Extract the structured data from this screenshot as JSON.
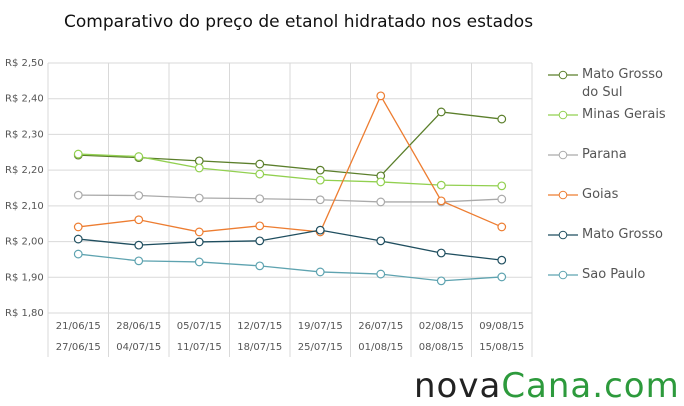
{
  "chart_data": {
    "type": "line",
    "title": "Comparativo do preço de etanol hidratado nos estados",
    "categories": [
      [
        "21/06/15",
        "27/06/15"
      ],
      [
        "28/06/15",
        "04/07/15"
      ],
      [
        "05/07/15",
        "11/07/15"
      ],
      [
        "12/07/15",
        "18/07/15"
      ],
      [
        "19/07/15",
        "25/07/15"
      ],
      [
        "26/07/15",
        "01/08/15"
      ],
      [
        "02/08/15",
        "08/08/15"
      ],
      [
        "09/08/15",
        "15/08/15"
      ]
    ],
    "series": [
      {
        "name": "Mato Grosso do Sul",
        "color": "#5b7f2b",
        "values": [
          2.242,
          2.235,
          2.226,
          2.217,
          2.2,
          2.184,
          2.363,
          2.343
        ]
      },
      {
        "name": "Minas Gerais",
        "color": "#92d050",
        "values": [
          2.245,
          2.238,
          2.206,
          2.189,
          2.172,
          2.167,
          2.158,
          2.156
        ]
      },
      {
        "name": "Parana",
        "color": "#aaaaaa",
        "values": [
          2.13,
          2.129,
          2.122,
          2.12,
          2.117,
          2.111,
          2.111,
          2.119
        ]
      },
      {
        "name": "Goias",
        "color": "#ed7d31",
        "values": [
          2.041,
          2.061,
          2.027,
          2.044,
          2.027,
          2.408,
          2.114,
          2.041
        ]
      },
      {
        "name": "Mato Grosso",
        "color": "#1f4e5f",
        "values": [
          2.007,
          1.99,
          1.999,
          2.002,
          2.032,
          2.002,
          1.968,
          1.948
        ]
      },
      {
        "name": "Sao Paulo",
        "color": "#5ea3b0",
        "values": [
          1.965,
          1.946,
          1.943,
          1.932,
          1.915,
          1.909,
          1.89,
          1.901
        ]
      }
    ],
    "ylim": [
      1.8,
      2.5
    ],
    "yticks": [
      {
        "value": 1.8,
        "label": "R$ 1,80"
      },
      {
        "value": 1.9,
        "label": "R$ 1,90"
      },
      {
        "value": 2.0,
        "label": "R$ 2,00"
      },
      {
        "value": 2.1,
        "label": "R$ 2,10"
      },
      {
        "value": 2.2,
        "label": "R$ 2,20"
      },
      {
        "value": 2.3,
        "label": "R$ 2,30"
      },
      {
        "value": 2.4,
        "label": "R$ 2,40"
      },
      {
        "value": 2.5,
        "label": "R$ 2,50"
      }
    ],
    "grid": true,
    "logo": [
      "nova",
      "Cana",
      ".com"
    ]
  }
}
